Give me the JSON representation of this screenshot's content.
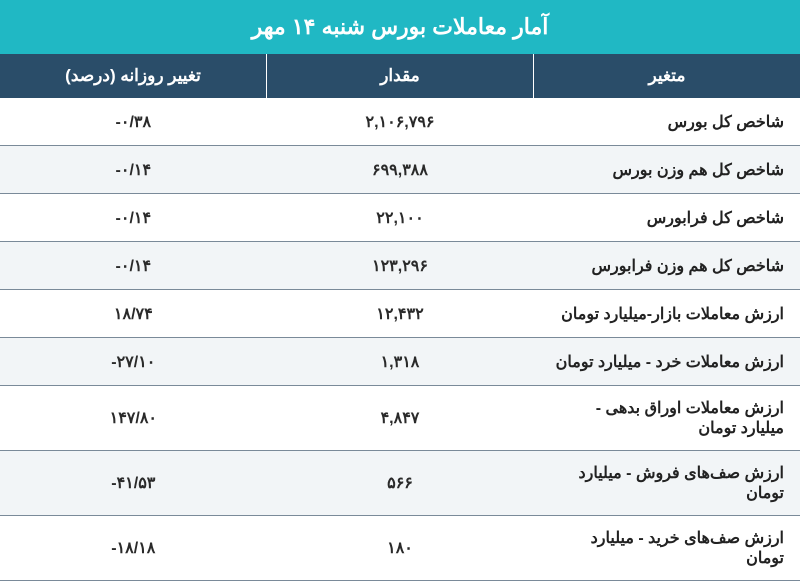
{
  "title": "آمار معاملات بورس شنبه ۱۴ مهر",
  "columns": {
    "variable": "متغیر",
    "value": "مقدار",
    "change": "تغییر روزانه (درصد)"
  },
  "colors": {
    "title_bg": "#20b8c4",
    "header_bg": "#2a4d69",
    "header_fg": "#ffffff",
    "row_border": "#7a8a99",
    "row_alt_bg": "#f2f5f7",
    "text": "#2a2a2a"
  },
  "typography": {
    "title_fontsize_pt": 17,
    "header_fontsize_pt": 13,
    "cell_fontsize_pt": 12,
    "weight": "bold"
  },
  "rows": [
    {
      "variable": "شاخص کل بورس",
      "value": "۲,۱۰۶,۷۹۶",
      "change": "-۰/۳۸"
    },
    {
      "variable": "شاخص کل هم وزن بورس",
      "value": "۶۹۹,۳۸۸",
      "change": "-۰/۱۴"
    },
    {
      "variable": "شاخص کل فرابورس",
      "value": "۲۲,۱۰۰",
      "change": "-۰/۱۴"
    },
    {
      "variable": "شاخص کل هم وزن فرابورس",
      "value": "۱۲۳,۲۹۶",
      "change": "-۰/۱۴"
    },
    {
      "variable": "ارزش معاملات بازار-میلیارد تومان",
      "value": "۱۲,۴۳۲",
      "change": "۱۸/۷۴"
    },
    {
      "variable": "ارزش معاملات خرد - میلیارد تومان",
      "value": "۱,۳۱۸",
      "change": "-۲۷/۱۰"
    },
    {
      "variable": "ارزش معاملات اوراق بدهی - میلیارد تومان",
      "value": "۴,۸۴۷",
      "change": "۱۴۷/۸۰"
    },
    {
      "variable": "ارزش صف‌های فروش - میلیارد تومان",
      "value": "۵۶۶",
      "change": "-۴۱/۵۳"
    },
    {
      "variable": "ارزش صف‌های خرید - میلیارد تومان",
      "value": "۱۸۰",
      "change": "-۱۸/۱۸"
    }
  ]
}
